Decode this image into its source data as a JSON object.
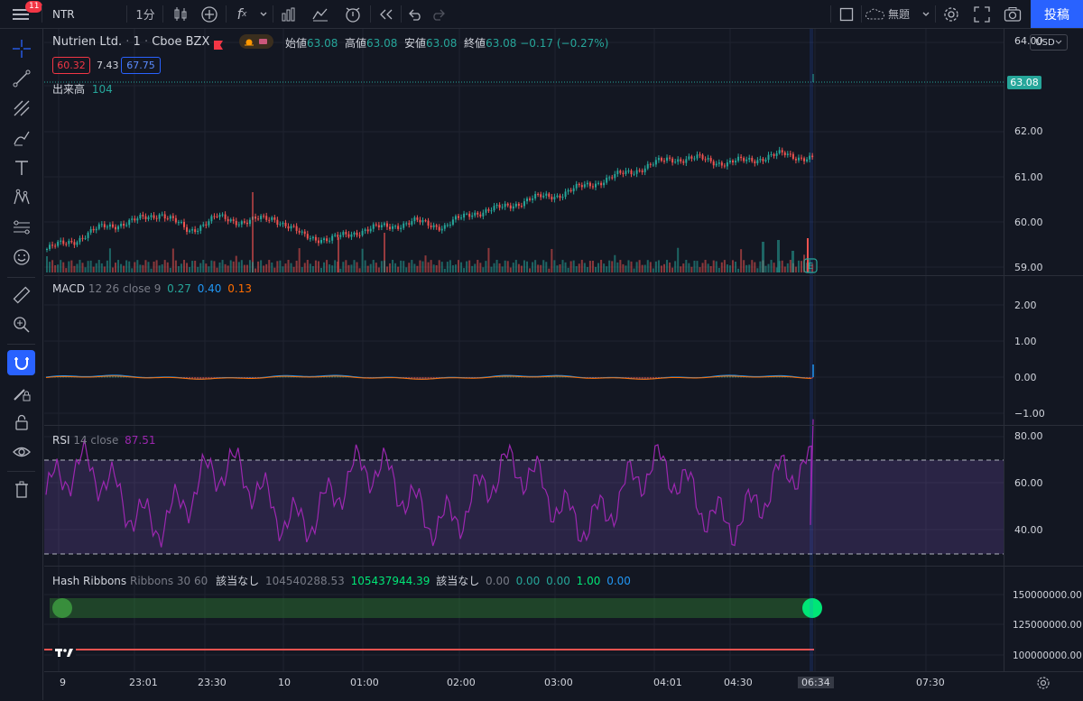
{
  "toolbar": {
    "badge": "11",
    "symbol": "NTR",
    "interval": "1分",
    "layout_name": "無題",
    "publish": "投稿"
  },
  "legend": {
    "name": "Nutrien Ltd.",
    "interval": "1",
    "exchange": "Cboe BZX",
    "open_label": "始値",
    "open": "63.08",
    "high_label": "高値",
    "high": "63.08",
    "low_label": "安値",
    "low": "63.08",
    "close_label": "終値",
    "close": "63.08",
    "change": "−0.17 (−0.27%)",
    "bid": "60.32",
    "spread": "7.43",
    "ask": "67.75",
    "volume_label": "出来高",
    "volume": "104"
  },
  "price_axis": {
    "currency": "USD",
    "ticks": [
      "64.00",
      "62.00",
      "61.00",
      "60.00",
      "59.00"
    ],
    "last_price": "63.08"
  },
  "macd": {
    "label": "MACD",
    "params": "12 26 close 9",
    "v1": "0.27",
    "v2": "0.40",
    "v3": "0.13",
    "ticks": [
      "2.00",
      "1.00",
      "0.00",
      "−1.00"
    ]
  },
  "rsi": {
    "label": "RSI",
    "params": "14 close",
    "value": "87.51",
    "ticks": [
      "80.00",
      "60.00",
      "40.00"
    ]
  },
  "hash": {
    "label": "Hash Ribbons",
    "params": "Ribbons 30 60",
    "na1": "該当なし",
    "v1": "104540288.53",
    "v2": "105437944.39",
    "na2": "該当なし",
    "v3": "0.00",
    "v4": "0.00",
    "v5": "0.00",
    "v6": "1.00",
    "v7": "0.00",
    "ticks": [
      "150000000.00",
      "125000000.00",
      "100000000.00"
    ]
  },
  "time_axis": {
    "labels": [
      "9",
      "23:01",
      "23:30",
      "10",
      "01:00",
      "02:00",
      "03:00",
      "04:01",
      "04:30",
      "06:34",
      "07:30"
    ]
  },
  "colors": {
    "up": "#26a69a",
    "down": "#ef5350",
    "rsi": "#9c27b0",
    "accent": "#2962ff",
    "green_dot": "#00e676"
  },
  "chart_data": [
    {
      "type": "candlestick",
      "symbol": "NTR",
      "ylim": [
        59.0,
        64.2
      ],
      "approx_close": [
        59.4,
        59.6,
        59.9,
        60.0,
        60.2,
        59.8,
        60.1,
        60.0,
        60.1,
        59.7,
        59.6,
        59.8,
        59.9,
        60.0,
        59.9,
        60.2,
        60.3,
        60.5,
        60.6,
        60.8,
        61.0,
        61.2,
        61.4,
        61.4,
        61.3,
        61.4,
        61.5,
        61.4,
        63.08
      ]
    },
    {
      "type": "line",
      "name": "MACD",
      "ylim": [
        -1.2,
        2.6
      ]
    },
    {
      "type": "line",
      "name": "RSI",
      "ylim": [
        25,
        85
      ],
      "bands": [
        30,
        70
      ]
    },
    {
      "type": "line",
      "name": "Hash Ribbons",
      "ylim": [
        90000000,
        160000000
      ]
    }
  ]
}
